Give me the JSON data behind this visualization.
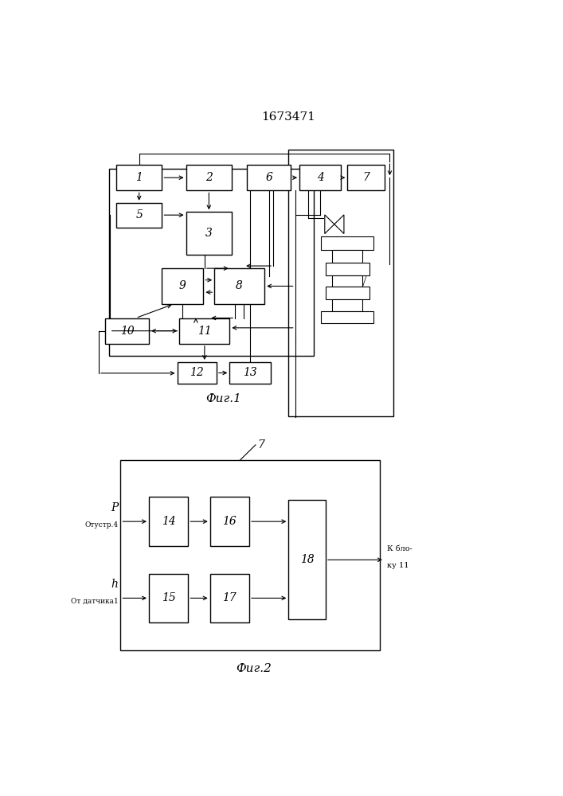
{
  "title": "1673471",
  "fig1_caption": "Фиг.1",
  "fig2_caption": "Фиг.2",
  "bg_color": "#ffffff",
  "box_edge": "#000000",
  "line_color": "#000000",
  "font_size_label": 10,
  "font_size_title": 11,
  "font_size_caption": 11,
  "fig1": {
    "blocks": {
      "1": [
        0.105,
        0.845,
        0.105,
        0.042
      ],
      "2": [
        0.265,
        0.845,
        0.105,
        0.042
      ],
      "6": [
        0.405,
        0.845,
        0.1,
        0.042
      ],
      "4": [
        0.525,
        0.845,
        0.095,
        0.042
      ],
      "7": [
        0.635,
        0.845,
        0.085,
        0.042
      ],
      "5": [
        0.105,
        0.785,
        0.105,
        0.04
      ],
      "3": [
        0.265,
        0.74,
        0.105,
        0.07
      ],
      "9": [
        0.21,
        0.66,
        0.095,
        0.058
      ],
      "8": [
        0.33,
        0.66,
        0.115,
        0.058
      ],
      "10": [
        0.08,
        0.595,
        0.1,
        0.042
      ],
      "11": [
        0.25,
        0.595,
        0.115,
        0.042
      ],
      "12": [
        0.245,
        0.53,
        0.09,
        0.035
      ],
      "13": [
        0.365,
        0.53,
        0.095,
        0.035
      ]
    }
  },
  "fig2": {
    "outer": [
      0.115,
      0.095,
      0.595,
      0.31
    ],
    "blocks": {
      "14": [
        0.18,
        0.265,
        0.09,
        0.08
      ],
      "15": [
        0.18,
        0.14,
        0.09,
        0.08
      ],
      "16": [
        0.32,
        0.265,
        0.09,
        0.08
      ],
      "17": [
        0.32,
        0.14,
        0.09,
        0.08
      ],
      "18": [
        0.5,
        0.145,
        0.085,
        0.195
      ]
    }
  }
}
